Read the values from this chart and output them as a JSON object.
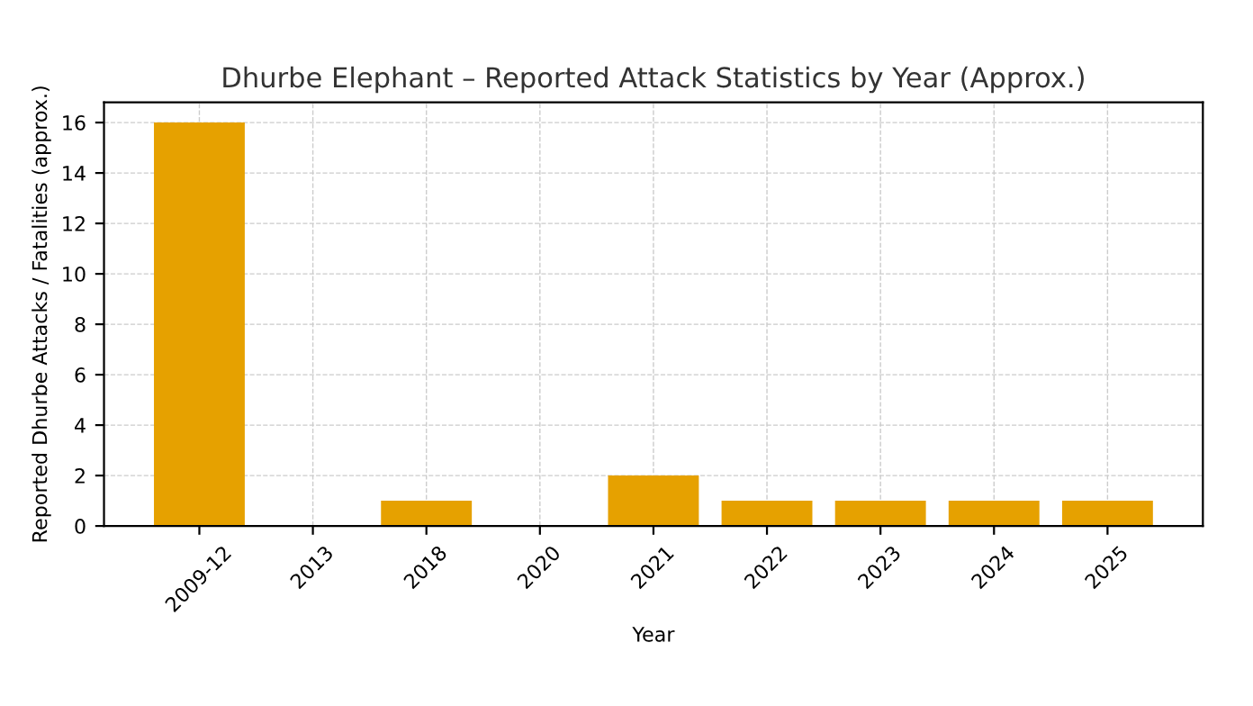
{
  "chart_data": {
    "type": "bar",
    "title": "Dhurbe Elephant – Reported Attack Statistics by Year (Approx.)",
    "xlabel": "Year",
    "ylabel": "Reported Dhurbe Attacks / Fatalities (approx.)",
    "categories": [
      "2009-12",
      "2013",
      "2018",
      "2020",
      "2021",
      "2022",
      "2023",
      "2024",
      "2025"
    ],
    "values": [
      16,
      0,
      1,
      0,
      2,
      1,
      1,
      1,
      1
    ],
    "color": "#e6a100",
    "ylim": [
      0,
      16.8
    ],
    "yticks": [
      0,
      2,
      4,
      6,
      8,
      10,
      12,
      14,
      16
    ],
    "grid": true,
    "line_style": "dashed"
  }
}
